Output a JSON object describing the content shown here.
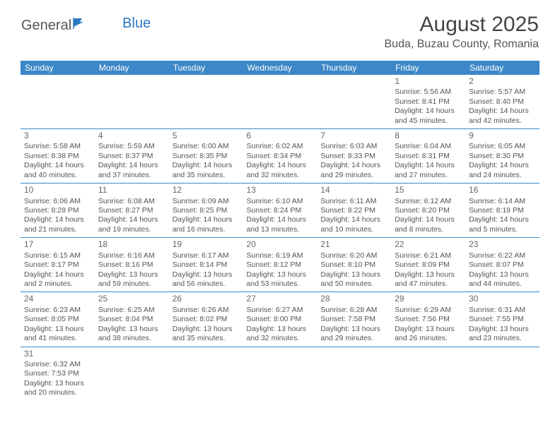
{
  "logo": {
    "general": "General",
    "blue": "Blue"
  },
  "title": "August 2025",
  "location": "Buda, Buzau County, Romania",
  "day_headers": [
    "Sunday",
    "Monday",
    "Tuesday",
    "Wednesday",
    "Thursday",
    "Friday",
    "Saturday"
  ],
  "colors": {
    "header_bg": "#3c87c7",
    "header_text": "#ffffff",
    "border": "#3c87c7",
    "body_text": "#555555",
    "title_text": "#444444"
  },
  "weeks": [
    [
      null,
      null,
      null,
      null,
      null,
      {
        "n": "1",
        "sr": "Sunrise: 5:56 AM",
        "ss": "Sunset: 8:41 PM",
        "d1": "Daylight: 14 hours",
        "d2": "and 45 minutes."
      },
      {
        "n": "2",
        "sr": "Sunrise: 5:57 AM",
        "ss": "Sunset: 8:40 PM",
        "d1": "Daylight: 14 hours",
        "d2": "and 42 minutes."
      }
    ],
    [
      {
        "n": "3",
        "sr": "Sunrise: 5:58 AM",
        "ss": "Sunset: 8:38 PM",
        "d1": "Daylight: 14 hours",
        "d2": "and 40 minutes."
      },
      {
        "n": "4",
        "sr": "Sunrise: 5:59 AM",
        "ss": "Sunset: 8:37 PM",
        "d1": "Daylight: 14 hours",
        "d2": "and 37 minutes."
      },
      {
        "n": "5",
        "sr": "Sunrise: 6:00 AM",
        "ss": "Sunset: 8:35 PM",
        "d1": "Daylight: 14 hours",
        "d2": "and 35 minutes."
      },
      {
        "n": "6",
        "sr": "Sunrise: 6:02 AM",
        "ss": "Sunset: 8:34 PM",
        "d1": "Daylight: 14 hours",
        "d2": "and 32 minutes."
      },
      {
        "n": "7",
        "sr": "Sunrise: 6:03 AM",
        "ss": "Sunset: 8:33 PM",
        "d1": "Daylight: 14 hours",
        "d2": "and 29 minutes."
      },
      {
        "n": "8",
        "sr": "Sunrise: 6:04 AM",
        "ss": "Sunset: 8:31 PM",
        "d1": "Daylight: 14 hours",
        "d2": "and 27 minutes."
      },
      {
        "n": "9",
        "sr": "Sunrise: 6:05 AM",
        "ss": "Sunset: 8:30 PM",
        "d1": "Daylight: 14 hours",
        "d2": "and 24 minutes."
      }
    ],
    [
      {
        "n": "10",
        "sr": "Sunrise: 6:06 AM",
        "ss": "Sunset: 8:28 PM",
        "d1": "Daylight: 14 hours",
        "d2": "and 21 minutes."
      },
      {
        "n": "11",
        "sr": "Sunrise: 6:08 AM",
        "ss": "Sunset: 8:27 PM",
        "d1": "Daylight: 14 hours",
        "d2": "and 19 minutes."
      },
      {
        "n": "12",
        "sr": "Sunrise: 6:09 AM",
        "ss": "Sunset: 8:25 PM",
        "d1": "Daylight: 14 hours",
        "d2": "and 16 minutes."
      },
      {
        "n": "13",
        "sr": "Sunrise: 6:10 AM",
        "ss": "Sunset: 8:24 PM",
        "d1": "Daylight: 14 hours",
        "d2": "and 13 minutes."
      },
      {
        "n": "14",
        "sr": "Sunrise: 6:11 AM",
        "ss": "Sunset: 8:22 PM",
        "d1": "Daylight: 14 hours",
        "d2": "and 10 minutes."
      },
      {
        "n": "15",
        "sr": "Sunrise: 6:12 AM",
        "ss": "Sunset: 8:20 PM",
        "d1": "Daylight: 14 hours",
        "d2": "and 8 minutes."
      },
      {
        "n": "16",
        "sr": "Sunrise: 6:14 AM",
        "ss": "Sunset: 8:19 PM",
        "d1": "Daylight: 14 hours",
        "d2": "and 5 minutes."
      }
    ],
    [
      {
        "n": "17",
        "sr": "Sunrise: 6:15 AM",
        "ss": "Sunset: 8:17 PM",
        "d1": "Daylight: 14 hours",
        "d2": "and 2 minutes."
      },
      {
        "n": "18",
        "sr": "Sunrise: 6:16 AM",
        "ss": "Sunset: 8:16 PM",
        "d1": "Daylight: 13 hours",
        "d2": "and 59 minutes."
      },
      {
        "n": "19",
        "sr": "Sunrise: 6:17 AM",
        "ss": "Sunset: 8:14 PM",
        "d1": "Daylight: 13 hours",
        "d2": "and 56 minutes."
      },
      {
        "n": "20",
        "sr": "Sunrise: 6:19 AM",
        "ss": "Sunset: 8:12 PM",
        "d1": "Daylight: 13 hours",
        "d2": "and 53 minutes."
      },
      {
        "n": "21",
        "sr": "Sunrise: 6:20 AM",
        "ss": "Sunset: 8:10 PM",
        "d1": "Daylight: 13 hours",
        "d2": "and 50 minutes."
      },
      {
        "n": "22",
        "sr": "Sunrise: 6:21 AM",
        "ss": "Sunset: 8:09 PM",
        "d1": "Daylight: 13 hours",
        "d2": "and 47 minutes."
      },
      {
        "n": "23",
        "sr": "Sunrise: 6:22 AM",
        "ss": "Sunset: 8:07 PM",
        "d1": "Daylight: 13 hours",
        "d2": "and 44 minutes."
      }
    ],
    [
      {
        "n": "24",
        "sr": "Sunrise: 6:23 AM",
        "ss": "Sunset: 8:05 PM",
        "d1": "Daylight: 13 hours",
        "d2": "and 41 minutes."
      },
      {
        "n": "25",
        "sr": "Sunrise: 6:25 AM",
        "ss": "Sunset: 8:04 PM",
        "d1": "Daylight: 13 hours",
        "d2": "and 38 minutes."
      },
      {
        "n": "26",
        "sr": "Sunrise: 6:26 AM",
        "ss": "Sunset: 8:02 PM",
        "d1": "Daylight: 13 hours",
        "d2": "and 35 minutes."
      },
      {
        "n": "27",
        "sr": "Sunrise: 6:27 AM",
        "ss": "Sunset: 8:00 PM",
        "d1": "Daylight: 13 hours",
        "d2": "and 32 minutes."
      },
      {
        "n": "28",
        "sr": "Sunrise: 6:28 AM",
        "ss": "Sunset: 7:58 PM",
        "d1": "Daylight: 13 hours",
        "d2": "and 29 minutes."
      },
      {
        "n": "29",
        "sr": "Sunrise: 6:29 AM",
        "ss": "Sunset: 7:56 PM",
        "d1": "Daylight: 13 hours",
        "d2": "and 26 minutes."
      },
      {
        "n": "30",
        "sr": "Sunrise: 6:31 AM",
        "ss": "Sunset: 7:55 PM",
        "d1": "Daylight: 13 hours",
        "d2": "and 23 minutes."
      }
    ],
    [
      {
        "n": "31",
        "sr": "Sunrise: 6:32 AM",
        "ss": "Sunset: 7:53 PM",
        "d1": "Daylight: 13 hours",
        "d2": "and 20 minutes."
      },
      null,
      null,
      null,
      null,
      null,
      null
    ]
  ]
}
